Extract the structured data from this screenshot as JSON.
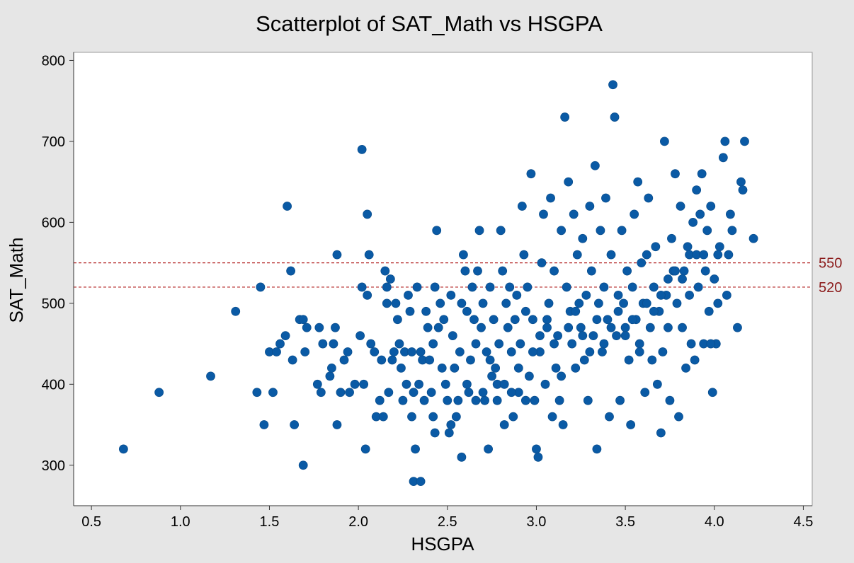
{
  "chart_data": {
    "type": "scatter",
    "title": "Scatterplot of SAT_Math vs HSGPA",
    "xlabel": "HSGPA",
    "ylabel": "SAT_Math",
    "xlim": [
      0.4,
      4.55
    ],
    "ylim": [
      250,
      810
    ],
    "xticks": [
      0.5,
      1.0,
      1.5,
      2.0,
      2.5,
      3.0,
      3.5,
      4.0,
      4.5
    ],
    "xtick_labels": [
      "0.5",
      "1.0",
      "1.5",
      "2.0",
      "2.5",
      "3.0",
      "3.5",
      "4.0",
      "4.5"
    ],
    "yticks": [
      300,
      400,
      500,
      600,
      700,
      800
    ],
    "ytick_labels": [
      "300",
      "400",
      "500",
      "600",
      "700",
      "800"
    ],
    "grid": false,
    "point_color": "#0a5aa5",
    "reference_line_color": "#b22222",
    "reference_lines": [
      {
        "y": 550,
        "label": "550"
      },
      {
        "y": 520,
        "label": "520"
      }
    ],
    "series": [
      {
        "points": [
          [
            0.68,
            320
          ],
          [
            0.88,
            390
          ],
          [
            1.17,
            410
          ],
          [
            1.31,
            490
          ],
          [
            1.43,
            390
          ],
          [
            1.45,
            520
          ],
          [
            1.47,
            350
          ],
          [
            1.5,
            440
          ],
          [
            1.52,
            390
          ],
          [
            1.54,
            440
          ],
          [
            1.56,
            450
          ],
          [
            1.59,
            460
          ],
          [
            1.6,
            620
          ],
          [
            1.62,
            540
          ],
          [
            1.63,
            430
          ],
          [
            1.64,
            350
          ],
          [
            1.67,
            480
          ],
          [
            1.69,
            300
          ],
          [
            1.69,
            480
          ],
          [
            1.7,
            440
          ],
          [
            1.71,
            470
          ],
          [
            1.77,
            400
          ],
          [
            1.78,
            470
          ],
          [
            1.79,
            390
          ],
          [
            1.8,
            450
          ],
          [
            1.84,
            410
          ],
          [
            1.85,
            420
          ],
          [
            1.86,
            450
          ],
          [
            1.87,
            470
          ],
          [
            1.88,
            560
          ],
          [
            1.88,
            350
          ],
          [
            1.9,
            390
          ],
          [
            1.92,
            430
          ],
          [
            1.94,
            440
          ],
          [
            1.95,
            390
          ],
          [
            1.98,
            400
          ],
          [
            2.01,
            460
          ],
          [
            2.02,
            690
          ],
          [
            2.02,
            520
          ],
          [
            2.03,
            400
          ],
          [
            2.04,
            320
          ],
          [
            2.05,
            610
          ],
          [
            2.05,
            510
          ],
          [
            2.06,
            560
          ],
          [
            2.07,
            450
          ],
          [
            2.09,
            440
          ],
          [
            2.1,
            360
          ],
          [
            2.12,
            380
          ],
          [
            2.13,
            430
          ],
          [
            2.14,
            360
          ],
          [
            2.15,
            540
          ],
          [
            2.16,
            520
          ],
          [
            2.16,
            500
          ],
          [
            2.17,
            390
          ],
          [
            2.18,
            530
          ],
          [
            2.19,
            430
          ],
          [
            2.2,
            440
          ],
          [
            2.21,
            500
          ],
          [
            2.22,
            480
          ],
          [
            2.23,
            450
          ],
          [
            2.24,
            420
          ],
          [
            2.25,
            380
          ],
          [
            2.26,
            440
          ],
          [
            2.27,
            400
          ],
          [
            2.28,
            510
          ],
          [
            2.29,
            490
          ],
          [
            2.3,
            440
          ],
          [
            2.3,
            360
          ],
          [
            2.31,
            280
          ],
          [
            2.31,
            390
          ],
          [
            2.32,
            320
          ],
          [
            2.33,
            520
          ],
          [
            2.34,
            400
          ],
          [
            2.35,
            440
          ],
          [
            2.36,
            430
          ],
          [
            2.37,
            380
          ],
          [
            2.38,
            490
          ],
          [
            2.39,
            470
          ],
          [
            2.4,
            430
          ],
          [
            2.41,
            390
          ],
          [
            2.42,
            360
          ],
          [
            2.42,
            450
          ],
          [
            2.43,
            520
          ],
          [
            2.44,
            590
          ],
          [
            2.45,
            470
          ],
          [
            2.46,
            500
          ],
          [
            2.47,
            420
          ],
          [
            2.48,
            480
          ],
          [
            2.49,
            400
          ],
          [
            2.5,
            380
          ],
          [
            2.51,
            340
          ],
          [
            2.52,
            510
          ],
          [
            2.53,
            460
          ],
          [
            2.54,
            420
          ],
          [
            2.55,
            360
          ],
          [
            2.56,
            380
          ],
          [
            2.57,
            440
          ],
          [
            2.58,
            500
          ],
          [
            2.59,
            560
          ],
          [
            2.6,
            540
          ],
          [
            2.61,
            490
          ],
          [
            2.62,
            390
          ],
          [
            2.63,
            430
          ],
          [
            2.64,
            520
          ],
          [
            2.65,
            480
          ],
          [
            2.66,
            450
          ],
          [
            2.67,
            540
          ],
          [
            2.68,
            590
          ],
          [
            2.69,
            470
          ],
          [
            2.7,
            500
          ],
          [
            2.71,
            380
          ],
          [
            2.72,
            440
          ],
          [
            2.73,
            320
          ],
          [
            2.74,
            520
          ],
          [
            2.75,
            410
          ],
          [
            2.76,
            480
          ],
          [
            2.77,
            420
          ],
          [
            2.78,
            400
          ],
          [
            2.79,
            450
          ],
          [
            2.8,
            590
          ],
          [
            2.81,
            540
          ],
          [
            2.82,
            350
          ],
          [
            2.83,
            500
          ],
          [
            2.84,
            470
          ],
          [
            2.85,
            520
          ],
          [
            2.86,
            440
          ],
          [
            2.87,
            360
          ],
          [
            2.88,
            480
          ],
          [
            2.89,
            510
          ],
          [
            2.9,
            390
          ],
          [
            2.91,
            450
          ],
          [
            2.92,
            620
          ],
          [
            2.93,
            560
          ],
          [
            2.94,
            490
          ],
          [
            2.95,
            520
          ],
          [
            2.96,
            410
          ],
          [
            2.97,
            660
          ],
          [
            2.98,
            480
          ],
          [
            2.99,
            380
          ],
          [
            3.0,
            320
          ],
          [
            3.01,
            310
          ],
          [
            3.02,
            440
          ],
          [
            3.03,
            550
          ],
          [
            3.04,
            610
          ],
          [
            3.05,
            400
          ],
          [
            3.06,
            470
          ],
          [
            3.07,
            500
          ],
          [
            3.08,
            630
          ],
          [
            3.09,
            360
          ],
          [
            3.1,
            540
          ],
          [
            3.11,
            420
          ],
          [
            3.12,
            460
          ],
          [
            3.13,
            380
          ],
          [
            3.14,
            590
          ],
          [
            3.15,
            350
          ],
          [
            3.16,
            730
          ],
          [
            3.17,
            520
          ],
          [
            3.18,
            650
          ],
          [
            3.19,
            490
          ],
          [
            3.2,
            450
          ],
          [
            3.21,
            610
          ],
          [
            3.22,
            420
          ],
          [
            3.23,
            560
          ],
          [
            3.24,
            500
          ],
          [
            3.25,
            470
          ],
          [
            3.26,
            580
          ],
          [
            3.27,
            430
          ],
          [
            3.28,
            510
          ],
          [
            3.29,
            380
          ],
          [
            3.3,
            620
          ],
          [
            3.31,
            540
          ],
          [
            3.32,
            460
          ],
          [
            3.33,
            670
          ],
          [
            3.34,
            320
          ],
          [
            3.35,
            500
          ],
          [
            3.36,
            590
          ],
          [
            3.37,
            440
          ],
          [
            3.38,
            520
          ],
          [
            3.39,
            630
          ],
          [
            3.4,
            480
          ],
          [
            3.41,
            360
          ],
          [
            3.42,
            560
          ],
          [
            3.43,
            770
          ],
          [
            3.44,
            730
          ],
          [
            3.45,
            460
          ],
          [
            3.46,
            510
          ],
          [
            3.47,
            380
          ],
          [
            3.48,
            590
          ],
          [
            3.49,
            500
          ],
          [
            3.5,
            470
          ],
          [
            3.51,
            540
          ],
          [
            3.52,
            430
          ],
          [
            3.53,
            350
          ],
          [
            3.54,
            520
          ],
          [
            3.55,
            610
          ],
          [
            3.56,
            480
          ],
          [
            3.57,
            650
          ],
          [
            3.58,
            450
          ],
          [
            3.59,
            550
          ],
          [
            3.6,
            500
          ],
          [
            3.61,
            390
          ],
          [
            3.62,
            560
          ],
          [
            3.63,
            630
          ],
          [
            3.64,
            470
          ],
          [
            3.65,
            430
          ],
          [
            3.66,
            520
          ],
          [
            3.67,
            570
          ],
          [
            3.68,
            400
          ],
          [
            3.69,
            490
          ],
          [
            3.7,
            340
          ],
          [
            3.71,
            440
          ],
          [
            3.72,
            700
          ],
          [
            3.73,
            510
          ],
          [
            3.74,
            470
          ],
          [
            3.75,
            380
          ],
          [
            3.76,
            580
          ],
          [
            3.77,
            540
          ],
          [
            3.78,
            660
          ],
          [
            3.79,
            500
          ],
          [
            3.8,
            360
          ],
          [
            3.81,
            620
          ],
          [
            3.82,
            470
          ],
          [
            3.83,
            540
          ],
          [
            3.84,
            420
          ],
          [
            3.85,
            570
          ],
          [
            3.86,
            510
          ],
          [
            3.87,
            450
          ],
          [
            3.88,
            600
          ],
          [
            3.89,
            430
          ],
          [
            3.9,
            640
          ],
          [
            3.91,
            520
          ],
          [
            3.92,
            610
          ],
          [
            3.93,
            660
          ],
          [
            3.94,
            450
          ],
          [
            3.95,
            540
          ],
          [
            3.96,
            590
          ],
          [
            3.97,
            490
          ],
          [
            3.98,
            620
          ],
          [
            3.99,
            390
          ],
          [
            4.0,
            530
          ],
          [
            4.01,
            450
          ],
          [
            4.02,
            500
          ],
          [
            4.03,
            570
          ],
          [
            4.05,
            680
          ],
          [
            4.06,
            700
          ],
          [
            4.07,
            510
          ],
          [
            4.08,
            560
          ],
          [
            4.09,
            610
          ],
          [
            4.1,
            590
          ],
          [
            4.13,
            470
          ],
          [
            4.15,
            650
          ],
          [
            4.16,
            640
          ],
          [
            4.17,
            700
          ],
          [
            4.22,
            580
          ],
          [
            2.35,
            280
          ],
          [
            2.43,
            340
          ],
          [
            2.52,
            350
          ],
          [
            2.58,
            310
          ],
          [
            2.61,
            400
          ],
          [
            2.66,
            380
          ],
          [
            2.7,
            390
          ],
          [
            2.74,
            430
          ],
          [
            2.78,
            380
          ],
          [
            2.82,
            400
          ],
          [
            2.86,
            390
          ],
          [
            2.9,
            420
          ],
          [
            2.94,
            380
          ],
          [
            2.98,
            440
          ],
          [
            3.02,
            460
          ],
          [
            3.06,
            480
          ],
          [
            3.1,
            450
          ],
          [
            3.14,
            410
          ],
          [
            3.18,
            470
          ],
          [
            3.22,
            490
          ],
          [
            3.26,
            460
          ],
          [
            3.3,
            440
          ],
          [
            3.34,
            480
          ],
          [
            3.38,
            450
          ],
          [
            3.42,
            470
          ],
          [
            3.46,
            490
          ],
          [
            3.5,
            460
          ],
          [
            3.54,
            480
          ],
          [
            3.58,
            440
          ],
          [
            3.62,
            500
          ],
          [
            3.66,
            490
          ],
          [
            3.7,
            510
          ],
          [
            3.74,
            530
          ],
          [
            3.78,
            540
          ],
          [
            3.82,
            530
          ],
          [
            3.86,
            560
          ],
          [
            3.9,
            560
          ],
          [
            3.94,
            560
          ],
          [
            3.98,
            450
          ],
          [
            4.02,
            560
          ]
        ]
      }
    ]
  }
}
